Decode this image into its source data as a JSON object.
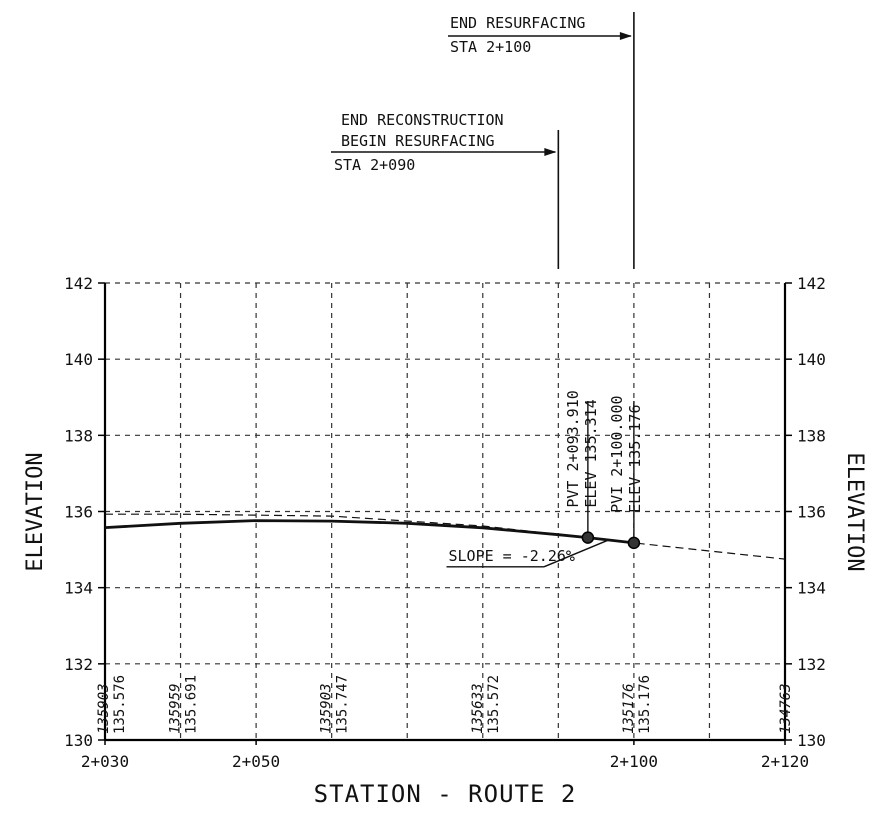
{
  "chart_data": {
    "type": "line",
    "xlabel": "STATION - ROUTE 2",
    "ylabel_left": "ELEVATION",
    "ylabel_right": "ELEVATION",
    "x_range": [
      2030,
      2120
    ],
    "y_range": [
      130,
      142
    ],
    "grid": true,
    "x_ticks": [
      {
        "value": 2030,
        "label": "2+030"
      },
      {
        "value": 2050,
        "label": "2+050"
      },
      {
        "value": 2100,
        "label": "2+100"
      },
      {
        "value": 2120,
        "label": "2+120"
      }
    ],
    "x_grid": [
      2030,
      2040,
      2050,
      2060,
      2070,
      2080,
      2090,
      2100,
      2110,
      2120
    ],
    "y_ticks": [
      {
        "value": 130,
        "label": "130"
      },
      {
        "value": 132,
        "label": "132"
      },
      {
        "value": 134,
        "label": "134"
      },
      {
        "value": 136,
        "label": "136"
      },
      {
        "value": 138,
        "label": "138"
      },
      {
        "value": 140,
        "label": "140"
      },
      {
        "value": 142,
        "label": "142"
      }
    ],
    "series": [
      {
        "style": "solid",
        "points": [
          [
            2030,
            135.576
          ],
          [
            2040,
            135.691
          ],
          [
            2050,
            135.76
          ],
          [
            2060,
            135.747
          ],
          [
            2070,
            135.69
          ],
          [
            2080,
            135.572
          ],
          [
            2090,
            135.39
          ],
          [
            2093.91,
            135.314
          ],
          [
            2100,
            135.176
          ]
        ]
      },
      {
        "style": "dashed",
        "points": [
          [
            2030,
            135.93
          ],
          [
            2040,
            135.93
          ],
          [
            2060,
            135.88
          ],
          [
            2080,
            135.62
          ],
          [
            2093.91,
            135.31
          ],
          [
            2100,
            135.176
          ],
          [
            2120,
            134.75
          ]
        ]
      }
    ],
    "points": [
      {
        "x": 2093.91,
        "y": 135.314,
        "labels": [
          "PVT 2+093.910",
          "ELEV 135.314"
        ]
      },
      {
        "x": 2100,
        "y": 135.176,
        "labels": [
          "PVI 2+100.000",
          "ELEV 135.176"
        ]
      }
    ],
    "bottom_labels": [
      {
        "x": 2030,
        "values": [
          "135903",
          "135.576"
        ]
      },
      {
        "x": 2040,
        "values": [
          "135959",
          "135.691"
        ]
      },
      {
        "x": 2060,
        "values": [
          "135903",
          "135.747"
        ]
      },
      {
        "x": 2080,
        "values": [
          "135633",
          "135.572"
        ]
      },
      {
        "x": 2100,
        "values": [
          "135176",
          "135.176"
        ]
      },
      {
        "x": 2120,
        "values": [
          "134763"
        ]
      }
    ],
    "annotations": {
      "slope": "SLOPE = -2.26%",
      "end_resurfacing": [
        "END RESURFACING",
        "STA 2+100"
      ],
      "end_reconstruction": [
        "END RECONSTRUCTION",
        "BEGIN RESURFACING",
        "STA 2+090"
      ]
    },
    "markers": [
      {
        "x": 2090,
        "ref": "end_reconstruction"
      },
      {
        "x": 2100,
        "ref": "end_resurfacing"
      }
    ]
  }
}
